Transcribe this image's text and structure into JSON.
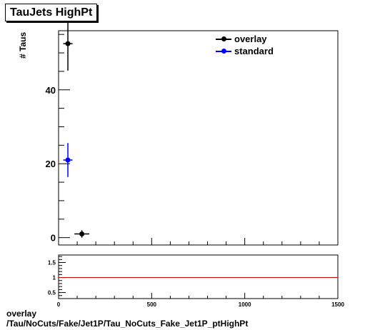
{
  "title": "TauJets HighPt",
  "caption_line1": "overlay",
  "caption_line2": "/Tau/NoCuts/Fake/Jet1P/Tau_NoCuts_Fake_Jet1P_ptHighPt",
  "chart_data": [
    {
      "type": "scatter",
      "title": "TauJets HighPt",
      "xlabel": "",
      "ylabel": "# Taus",
      "xlim": [
        0,
        1500
      ],
      "ylim": [
        -2,
        56
      ],
      "yticks": [
        0,
        20,
        40
      ],
      "series": [
        {
          "name": "overlay",
          "color": "#000000",
          "points": [
            {
              "x": 50,
              "y": 52.5,
              "xerr": 25,
              "yerr": 7.3
            },
            {
              "x": 125,
              "y": 1,
              "xerr": 40,
              "yerr": 1
            }
          ]
        },
        {
          "name": "standard",
          "color": "#0000ff",
          "points": [
            {
              "x": 50,
              "y": 21,
              "xerr": 25,
              "yerr": 4.6
            }
          ]
        }
      ]
    },
    {
      "type": "line",
      "title": "",
      "xlabel": "",
      "ylabel": "",
      "xlim": [
        0,
        1500
      ],
      "ylim": [
        0.3,
        1.75
      ],
      "xticks": [
        0,
        500,
        1000,
        1500
      ],
      "yticks": [
        0.5,
        1,
        1.5
      ],
      "reference_line": {
        "y": 1,
        "color": "#cc0000"
      }
    }
  ]
}
